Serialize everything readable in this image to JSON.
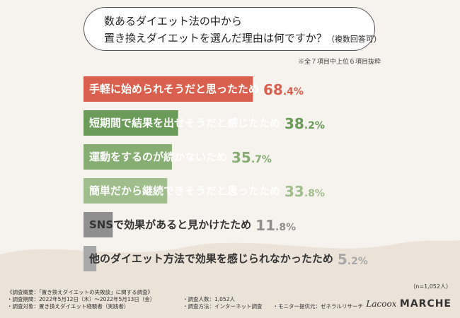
{
  "question": {
    "line1": "数あるダイエット法の中から",
    "line2": "置き換えダイエットを選んだ理由は何ですか？",
    "note_small": "（複数回答可）"
  },
  "note": "※全７項目中上位６項目抜粋",
  "chart_data": {
    "type": "bar",
    "orientation": "horizontal",
    "xlim": [
      0,
      100
    ],
    "unit": "%",
    "categories": [
      "手軽に始められそうだと思ったため",
      "短期間で結果を出せそうだと感じたため",
      "運動をするのが続かないため",
      "簡単だから継続できそうだと思ったため",
      "SNSで効果があると見かけたため",
      "他のダイエット方法で効果を感じられなかったため"
    ],
    "values": [
      68.4,
      38.2,
      35.7,
      33.8,
      11.8,
      5.2
    ],
    "value_labels": [
      {
        "int": "68",
        "dec": ".4%"
      },
      {
        "int": "38",
        "dec": ".2%"
      },
      {
        "int": "35",
        "dec": ".7%"
      },
      {
        "int": "33",
        "dec": ".8%"
      },
      {
        "int": "11",
        "dec": ".8%"
      },
      {
        "int": "5",
        "dec": ".2%"
      }
    ],
    "colors": [
      "#d9604e",
      "#6a9b58",
      "#86ad72",
      "#9fbe8c",
      "#8f8f8f",
      "#a8a8a8"
    ],
    "value_colors": [
      "#d9604e",
      "#6a9b58",
      "#86ad72",
      "#9fbe8c",
      "#8f8f8f",
      "#a8a8a8"
    ],
    "label_on_bar_light": [
      true,
      true,
      true,
      true,
      true,
      false
    ]
  },
  "footer": {
    "lines": [
      "《調査概要：「置き換えダイエットの失敗談」に関する調査》",
      "・調査期間：2022年5月12日（木）〜2022年5月13日（金）",
      "・調査対象：置き換えダイエット経験者（実践者）"
    ],
    "lines_right": [
      "・調査人数：1,052人",
      "・調査方法：インターネット調査　　・モニター提供元：ゼネラルリサーチ"
    ]
  },
  "sample": "（n=1,052人）",
  "brand": {
    "part1": "Lacoox",
    "part2": "MARCHE"
  },
  "background_color": "#f6f3ee"
}
